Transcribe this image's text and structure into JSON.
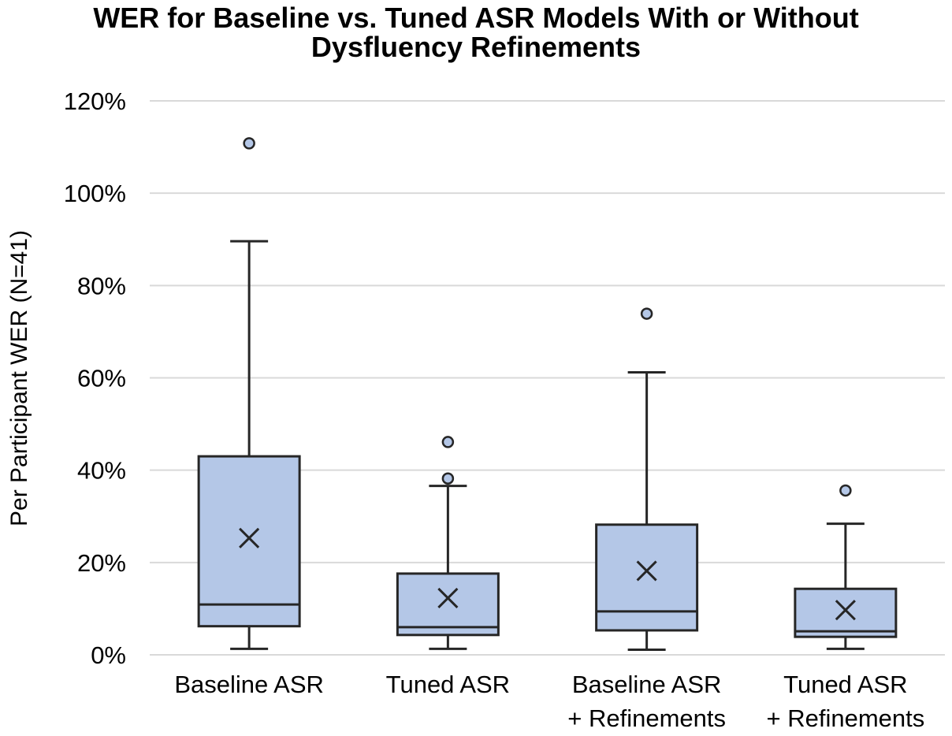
{
  "chart_data": {
    "type": "box",
    "title_lines": [
      "WER for Baseline vs. Tuned ASR Models With or Without",
      "Dysfluency Refinements"
    ],
    "ylabel": "Per Participant  WER (N=41)",
    "xlabel": "",
    "ylim": [
      0,
      120
    ],
    "yticks": [
      0,
      20,
      40,
      60,
      80,
      100,
      120
    ],
    "ytick_labels": [
      "0%",
      "20%",
      "40%",
      "60%",
      "80%",
      "100%",
      "120%"
    ],
    "grid": true,
    "colors": {
      "box_fill": "#b4c7e7",
      "stroke": "#262626",
      "outlier_fill": "#b4c7e7",
      "grid": "#d9d9d9"
    },
    "series": [
      {
        "label_lines": [
          "Baseline ASR"
        ],
        "whisker_low": 1.3,
        "q1": 6.2,
        "median": 10.9,
        "q3": 43.0,
        "whisker_high": 89.6,
        "mean": 25.3,
        "outliers": [
          110.8
        ]
      },
      {
        "label_lines": [
          "Tuned ASR"
        ],
        "whisker_low": 1.3,
        "q1": 4.3,
        "median": 6.0,
        "q3": 17.6,
        "whisker_high": 36.6,
        "mean": 12.3,
        "outliers": [
          38.2,
          46.1
        ]
      },
      {
        "label_lines": [
          "Baseline ASR",
          "+ Refinements"
        ],
        "whisker_low": 1.1,
        "q1": 5.3,
        "median": 9.4,
        "q3": 28.2,
        "whisker_high": 61.2,
        "mean": 18.2,
        "outliers": [
          73.9
        ]
      },
      {
        "label_lines": [
          "Tuned ASR",
          "+ Refinements"
        ],
        "whisker_low": 1.3,
        "q1": 3.9,
        "median": 5.1,
        "q3": 14.3,
        "whisker_high": 28.4,
        "mean": 9.7,
        "outliers": [
          35.6
        ]
      }
    ]
  }
}
